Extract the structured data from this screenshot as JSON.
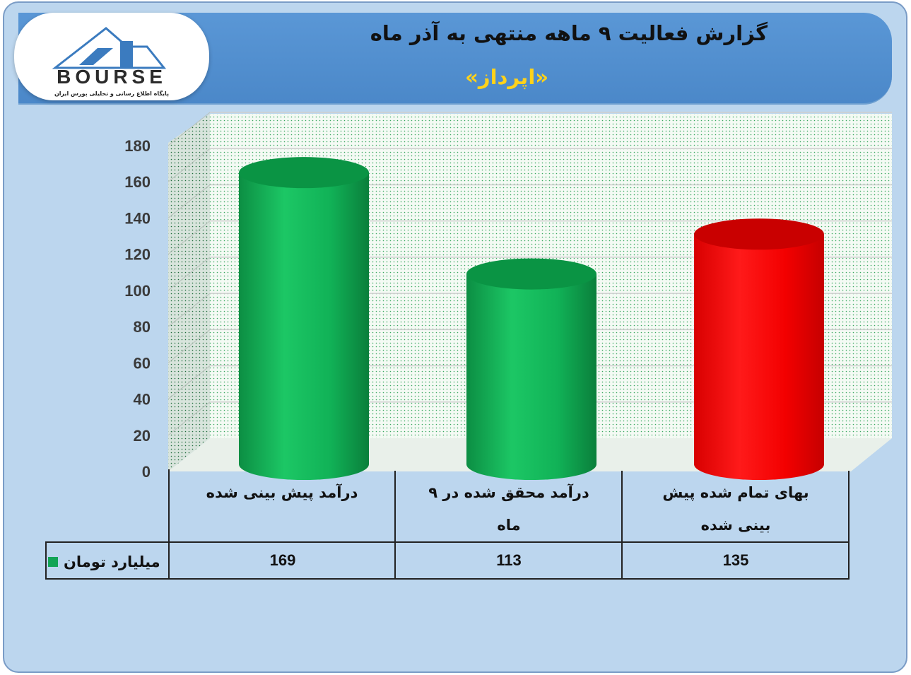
{
  "title": "گزارش فعالیت ۹ ماهه منتهی به آذر ماه",
  "subtitle": "«اپرداز»",
  "logo": {
    "text": "BOURSE",
    "tagline": "پایگاه اطلاع رسانی و تحلیلی بورس ایران"
  },
  "colors": {
    "background": "#bcd6ee",
    "header": "#4f8fd0",
    "green_bar": "#12b55a",
    "red_bar": "#ff0000",
    "subtitle": "#ffd21a"
  },
  "chart_data": {
    "type": "bar",
    "shape": "cylinder-3d",
    "categories": [
      "درآمد پیش بینی شده",
      "درآمد محقق شده در ۹ ماه",
      "بهای تمام شده پیش بینی شده"
    ],
    "series": [
      {
        "name": "میلیارد تومان",
        "values": [
          169,
          113,
          135
        ],
        "colors": [
          "#12b55a",
          "#12b55a",
          "#ff0000"
        ]
      }
    ],
    "yticks": [
      "0",
      "20",
      "40",
      "60",
      "80",
      "100",
      "120",
      "140",
      "160",
      "180"
    ],
    "ylim": [
      0,
      180
    ],
    "grid": true,
    "data_table": true,
    "table_values": [
      "169",
      "113",
      "135"
    ]
  }
}
